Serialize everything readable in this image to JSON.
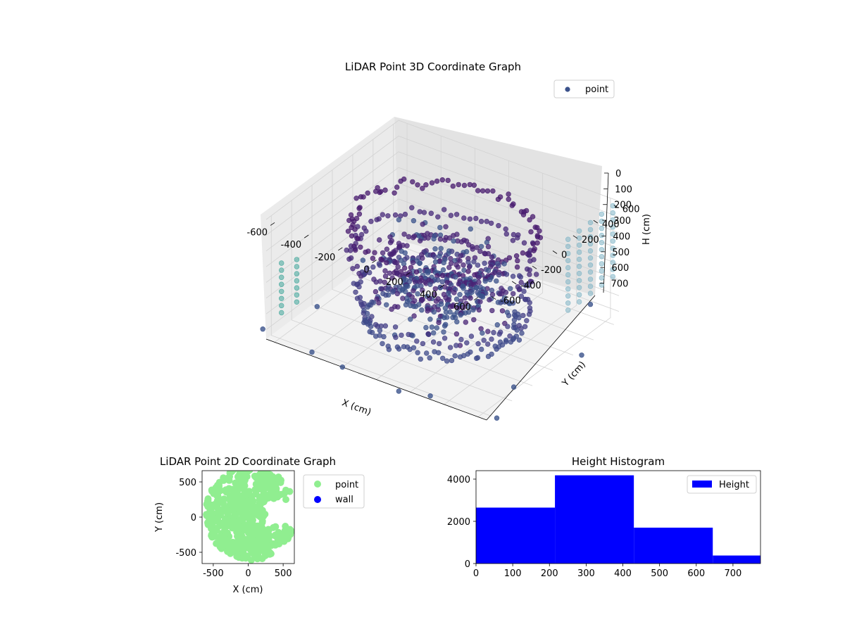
{
  "chart_data": [
    {
      "type": "scatter",
      "projection": "3d",
      "title": "LiDAR Point 3D Coordinate Graph",
      "xlabel": "X (cm)",
      "ylabel": "Y (cm)",
      "zlabel": "H (cm)",
      "x_ticks": [
        "-600",
        "-400",
        "-200",
        "0",
        "200",
        "400",
        "600"
      ],
      "y_ticks": [
        "-600",
        "-400",
        "-200",
        "0",
        "200",
        "400",
        "600"
      ],
      "z_ticks": [
        "0",
        "100",
        "200",
        "300",
        "400",
        "500",
        "600",
        "700"
      ],
      "xlim": [
        -650,
        650
      ],
      "ylim": [
        -650,
        650
      ],
      "zlim": [
        0,
        760
      ],
      "zaxis_inverted": true,
      "grid": true,
      "colormap": "viridis",
      "legend": {
        "entries": [
          "point"
        ],
        "placement": "top-right",
        "marker_color": "#3b528b"
      },
      "structure": {
        "rings": [
          {
            "radius": 480,
            "height": 120,
            "points": 110,
            "color": "#47196e"
          },
          {
            "radius": 470,
            "height": 300,
            "points": 90,
            "color": "#472a7a"
          },
          {
            "radius": 450,
            "height": 560,
            "points": 100,
            "color": "#433e85"
          },
          {
            "radius": 390,
            "height": 700,
            "points": 110,
            "color": "#3e4a89"
          },
          {
            "radius": 260,
            "height": 330,
            "points": 70,
            "color": "#482475"
          },
          {
            "radius": 200,
            "height": 520,
            "points": 60,
            "color": "#3b528b"
          }
        ],
        "columns": [
          {
            "x": 650,
            "y": 150,
            "z_from": 0,
            "z_to": 480,
            "color": "#7fb5c6"
          },
          {
            "x": 650,
            "y": 260,
            "z_from": 0,
            "z_to": 480,
            "color": "#7fb5c6"
          },
          {
            "x": 650,
            "y": 370,
            "z_from": 0,
            "z_to": 480,
            "color": "#7fb5c6"
          },
          {
            "x": 650,
            "y": 480,
            "z_from": 0,
            "z_to": 480,
            "color": "#7fb5c6"
          },
          {
            "x": 650,
            "y": 590,
            "z_from": 0,
            "z_to": 480,
            "color": "#7fb5c6"
          },
          {
            "x": -650,
            "y": -500,
            "z_from": 350,
            "z_to": 700,
            "color": "#3fa69a"
          },
          {
            "x": -650,
            "y": -350,
            "z_from": 400,
            "z_to": 700,
            "color": "#3fa69a"
          }
        ],
        "outliers": [
          [
            -700,
            -600,
            740
          ],
          [
            -200,
            -650,
            760
          ],
          [
            300,
            -620,
            760
          ],
          [
            600,
            -300,
            740
          ],
          [
            700,
            200,
            740
          ],
          [
            -650,
            300,
            720
          ],
          [
            500,
            620,
            700
          ],
          [
            -500,
            600,
            650
          ],
          [
            150,
            -680,
            760
          ],
          [
            -350,
            -700,
            700
          ],
          [
            680,
            -600,
            760
          ],
          [
            -620,
            -200,
            760
          ]
        ]
      }
    },
    {
      "type": "scatter",
      "title": "LiDAR Point 2D Coordinate Graph",
      "xlabel": "X (cm)",
      "ylabel": "Y (cm)",
      "x_ticks": [
        "-500",
        "0",
        "500"
      ],
      "y_ticks": [
        "-500",
        "0",
        "500"
      ],
      "xlim": [
        -660,
        660
      ],
      "ylim": [
        -660,
        660
      ],
      "series": [
        {
          "name": "point",
          "color": "#90ee90"
        },
        {
          "name": "wall",
          "color": "#0000ff",
          "values": []
        }
      ],
      "legend_placement": "outside right",
      "point_region": {
        "center_x": 30,
        "center_y": 50,
        "radius": 640,
        "notch_from_x": 240,
        "notch_y": [
          -120,
          250
        ]
      }
    },
    {
      "type": "bar",
      "title": "Height Histogram",
      "bin_edges": [
        0,
        215,
        430,
        645,
        775
      ],
      "values": [
        2650,
        4180,
        1700,
        380
      ],
      "x_ticks": [
        "0",
        "100",
        "200",
        "300",
        "400",
        "500",
        "600",
        "700"
      ],
      "y_ticks": [
        "0",
        "2000",
        "4000"
      ],
      "xlim": [
        0,
        775
      ],
      "ylim": [
        0,
        4400
      ],
      "series": [
        {
          "name": "Height",
          "color": "#0000ff"
        }
      ],
      "legend_placement": "top-right"
    }
  ]
}
